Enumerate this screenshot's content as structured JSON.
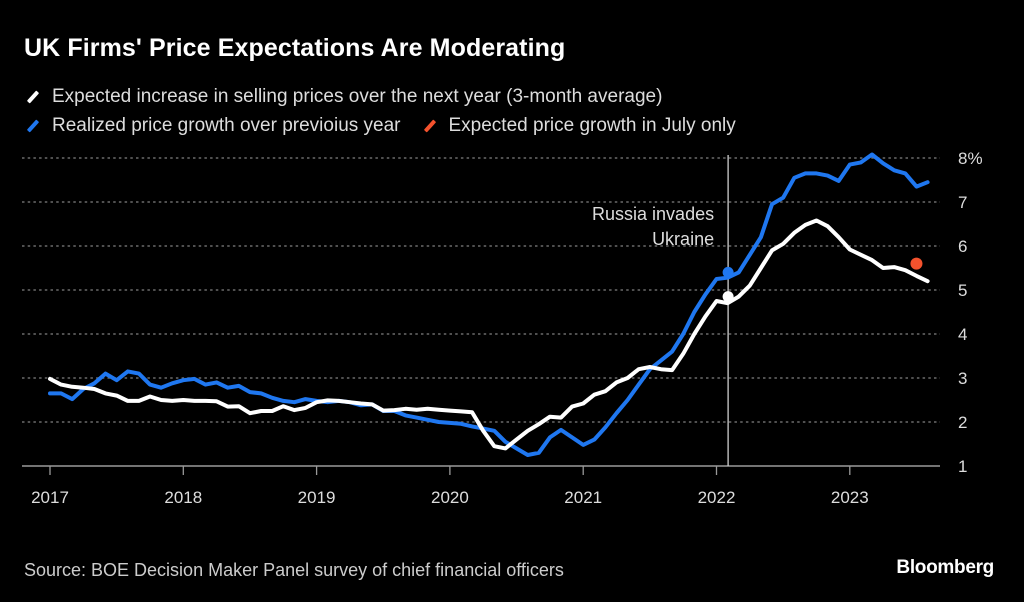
{
  "chart_data": {
    "type": "line",
    "title": "UK Firms' Price Expectations Are Moderating",
    "xlabel": "",
    "ylabel": "",
    "y_unit_suffix": "%",
    "ylim": [
      1,
      8
    ],
    "yticks": [
      1,
      2,
      3,
      4,
      5,
      6,
      7,
      8
    ],
    "ytick_labels": [
      "1",
      "2",
      "3",
      "4",
      "5",
      "6",
      "7",
      "8%"
    ],
    "xticks": [
      "2017",
      "2018",
      "2019",
      "2020",
      "2021",
      "2022",
      "2023"
    ],
    "x_start": "2017-01",
    "x_end": "2023-06",
    "grid": true,
    "legend_position": "top-left",
    "series": [
      {
        "name": "Expected increase in selling prices over the next year (3-month average)",
        "color": "#ffffff",
        "start": "2017-01",
        "values": [
          2.98,
          2.85,
          2.8,
          2.78,
          2.75,
          2.65,
          2.6,
          2.48,
          2.48,
          2.58,
          2.5,
          2.48,
          2.5,
          2.48,
          2.48,
          2.47,
          2.35,
          2.36,
          2.2,
          2.25,
          2.25,
          2.36,
          2.27,
          2.32,
          2.45,
          2.49,
          2.48,
          2.45,
          2.42,
          2.4,
          2.26,
          2.27,
          2.3,
          2.28,
          2.3,
          2.28,
          2.26,
          2.24,
          2.22,
          1.8,
          1.45,
          1.4,
          1.6,
          1.8,
          1.95,
          2.12,
          2.1,
          2.35,
          2.42,
          2.62,
          2.7,
          2.9,
          3.0,
          3.2,
          3.25,
          3.2,
          3.18,
          3.55,
          4.0,
          4.4,
          4.75,
          4.7,
          4.85,
          5.1,
          5.5,
          5.9,
          6.05,
          6.3,
          6.48,
          6.58,
          6.45,
          6.2,
          5.92,
          5.8,
          5.68,
          5.5,
          5.52,
          5.45,
          5.32,
          5.2
        ]
      },
      {
        "name": "Realized price growth over previoius year",
        "color": "#1f77f0",
        "start": "2017-01",
        "values": [
          2.65,
          2.65,
          2.52,
          2.75,
          2.88,
          3.1,
          2.95,
          3.15,
          3.1,
          2.85,
          2.78,
          2.88,
          2.95,
          2.98,
          2.85,
          2.9,
          2.78,
          2.82,
          2.68,
          2.65,
          2.55,
          2.48,
          2.45,
          2.52,
          2.48,
          2.45,
          2.48,
          2.45,
          2.38,
          2.4,
          2.25,
          2.25,
          2.15,
          2.1,
          2.05,
          2.0,
          1.98,
          1.96,
          1.9,
          1.85,
          1.8,
          1.55,
          1.4,
          1.25,
          1.3,
          1.65,
          1.82,
          1.65,
          1.48,
          1.6,
          1.88,
          2.2,
          2.5,
          2.85,
          3.2,
          3.4,
          3.6,
          4.0,
          4.5,
          4.9,
          5.25,
          5.28,
          5.4,
          5.8,
          6.2,
          6.95,
          7.1,
          7.55,
          7.65,
          7.65,
          7.6,
          7.48,
          7.85,
          7.9,
          8.08,
          7.88,
          7.72,
          7.65,
          7.35,
          7.45
        ]
      },
      {
        "name": "Expected price growth in July only",
        "color": "#f4522d",
        "type": "point",
        "x": "2023-07",
        "value": 5.6
      }
    ],
    "markers": [
      {
        "x": "2022-02",
        "series": "Realized price growth over previoius year",
        "value": 5.4
      },
      {
        "x": "2022-02",
        "series": "Expected increase in selling prices over the next year (3-month average)",
        "value": 4.85
      }
    ],
    "annotations": [
      {
        "x": "2022-02",
        "text_lines": [
          "Russia invades",
          "Ukraine"
        ],
        "type": "vertical-line"
      }
    ]
  },
  "legend": {
    "white_label": "Expected increase in selling prices over the next year (3-month average)",
    "blue_label": "Realized price growth over previoius year",
    "orange_label": "Expected price growth in July only"
  },
  "colors": {
    "white": "#ffffff",
    "blue": "#1f77f0",
    "orange": "#f4522d",
    "grid": "#6b6b6b",
    "axis": "#9a9a9a"
  },
  "footer": {
    "source": "Source: BOE Decision Maker Panel survey of chief financial officers",
    "brand": "Bloomberg"
  }
}
